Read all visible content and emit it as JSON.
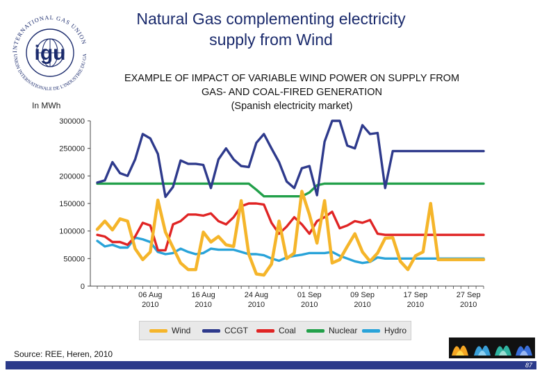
{
  "slide": {
    "title_line1": "Natural Gas complementing electricity",
    "title_line2": "supply from Wind",
    "subtitle_line1": "EXAMPLE OF IMPACT OF VARIABLE WIND POWER ON SUPPLY FROM",
    "subtitle_line2": "GAS- AND COAL-FIRED GENERATION",
    "subtitle_line3": "(Spanish electricity market)",
    "unit_label": "In MWh",
    "source": "Source: REE, Heren, 2010",
    "page_number": "87"
  },
  "logo": {
    "text_top": "INTERNATIONAL GAS UNION",
    "text_bottom": "UNION INTERNATIONALE DE L'INDUSTRIE DU GAZ",
    "initials": "igu"
  },
  "colors": {
    "title": "#1a2a6c",
    "wind": "#f5b52a",
    "ccgt": "#2e3a8c",
    "coal": "#e02424",
    "nuclear": "#22a04a",
    "hydro": "#29a3d9"
  },
  "chart_data": {
    "type": "line",
    "title": "EXAMPLE OF IMPACT OF VARIABLE WIND POWER ON SUPPLY FROM GAS- AND COAL-FIRED GENERATION",
    "ylabel": "In MWh",
    "xlabel": "",
    "ylim": [
      0,
      300000
    ],
    "y_ticks": [
      "300000",
      "250000",
      "200000",
      "150000",
      "100000",
      "50000",
      "0"
    ],
    "x_count": 52,
    "x_tick_labels": [
      {
        "index": 7,
        "line1": "06 Aug",
        "line2": "2010"
      },
      {
        "index": 14,
        "line1": "16 Aug",
        "line2": "2010"
      },
      {
        "index": 21,
        "line1": "24 Aug",
        "line2": "2010"
      },
      {
        "index": 28,
        "line1": "01 Sep",
        "line2": "2010"
      },
      {
        "index": 35,
        "line1": "09 Sep",
        "line2": "2010"
      },
      {
        "index": 42,
        "line1": "17 Sep",
        "line2": "2010"
      },
      {
        "index": 49,
        "line1": "27 Sep",
        "line2": "2010"
      }
    ],
    "series": [
      {
        "name": "Wind",
        "color_key": "wind",
        "values": [
          103000,
          118000,
          102000,
          122000,
          118000,
          68000,
          48000,
          62000,
          156000,
          98000,
          70000,
          42000,
          30000,
          30000,
          98000,
          80000,
          90000,
          75000,
          72000,
          155000,
          58000,
          22000,
          20000,
          40000,
          118000,
          50000,
          60000,
          172000,
          130000,
          78000,
          155000,
          42000,
          48000,
          72000,
          95000,
          62000,
          45000,
          60000,
          87000,
          88000,
          45000,
          30000,
          55000,
          62000,
          150000,
          48000,
          48000,
          48000,
          48000,
          48000,
          48000,
          48000
        ]
      },
      {
        "name": "CCGT",
        "color_key": "ccgt",
        "values": [
          188000,
          192000,
          225000,
          205000,
          200000,
          230000,
          276000,
          268000,
          240000,
          162000,
          180000,
          228000,
          222000,
          222000,
          220000,
          178000,
          230000,
          250000,
          230000,
          218000,
          216000,
          260000,
          276000,
          250000,
          225000,
          190000,
          178000,
          214000,
          218000,
          165000,
          262000,
          300000,
          300000,
          255000,
          250000,
          292000,
          276000,
          278000,
          178000,
          245000,
          245000,
          245000,
          245000,
          245000,
          245000,
          245000,
          245000,
          245000,
          245000,
          245000,
          245000,
          245000
        ]
      },
      {
        "name": "Coal",
        "color_key": "coal",
        "values": [
          93000,
          90000,
          80000,
          80000,
          75000,
          90000,
          115000,
          110000,
          65000,
          65000,
          112000,
          118000,
          130000,
          130000,
          128000,
          132000,
          118000,
          112000,
          125000,
          145000,
          150000,
          150000,
          148000,
          115000,
          95000,
          108000,
          125000,
          112000,
          95000,
          118000,
          125000,
          135000,
          105000,
          110000,
          118000,
          115000,
          120000,
          95000,
          93000,
          93000,
          93000,
          93000,
          93000,
          93000,
          93000,
          93000,
          93000,
          93000,
          93000,
          93000,
          93000,
          93000
        ]
      },
      {
        "name": "Nuclear",
        "color_key": "nuclear",
        "values": [
          186000,
          186000,
          186000,
          186000,
          186000,
          186000,
          186000,
          186000,
          186000,
          186000,
          186000,
          186000,
          186000,
          186000,
          186000,
          186000,
          186000,
          186000,
          186000,
          186000,
          186000,
          175000,
          163000,
          163000,
          163000,
          163000,
          163000,
          163000,
          170000,
          183000,
          186000,
          186000,
          186000,
          186000,
          186000,
          186000,
          186000,
          186000,
          186000,
          186000,
          186000,
          186000,
          186000,
          186000,
          186000,
          186000,
          186000,
          186000,
          186000,
          186000,
          186000,
          186000
        ]
      },
      {
        "name": "Hydro",
        "color_key": "hydro",
        "values": [
          82000,
          72000,
          75000,
          70000,
          70000,
          88000,
          85000,
          80000,
          62000,
          58000,
          60000,
          68000,
          62000,
          58000,
          60000,
          68000,
          66000,
          66000,
          66000,
          62000,
          58000,
          58000,
          56000,
          50000,
          46000,
          52000,
          55000,
          57000,
          60000,
          60000,
          60000,
          62000,
          55000,
          50000,
          45000,
          42000,
          44000,
          52000,
          50000,
          50000,
          50000,
          50000,
          50000,
          50000,
          50000,
          50000,
          50000,
          50000,
          50000,
          50000,
          50000,
          50000
        ]
      }
    ]
  }
}
